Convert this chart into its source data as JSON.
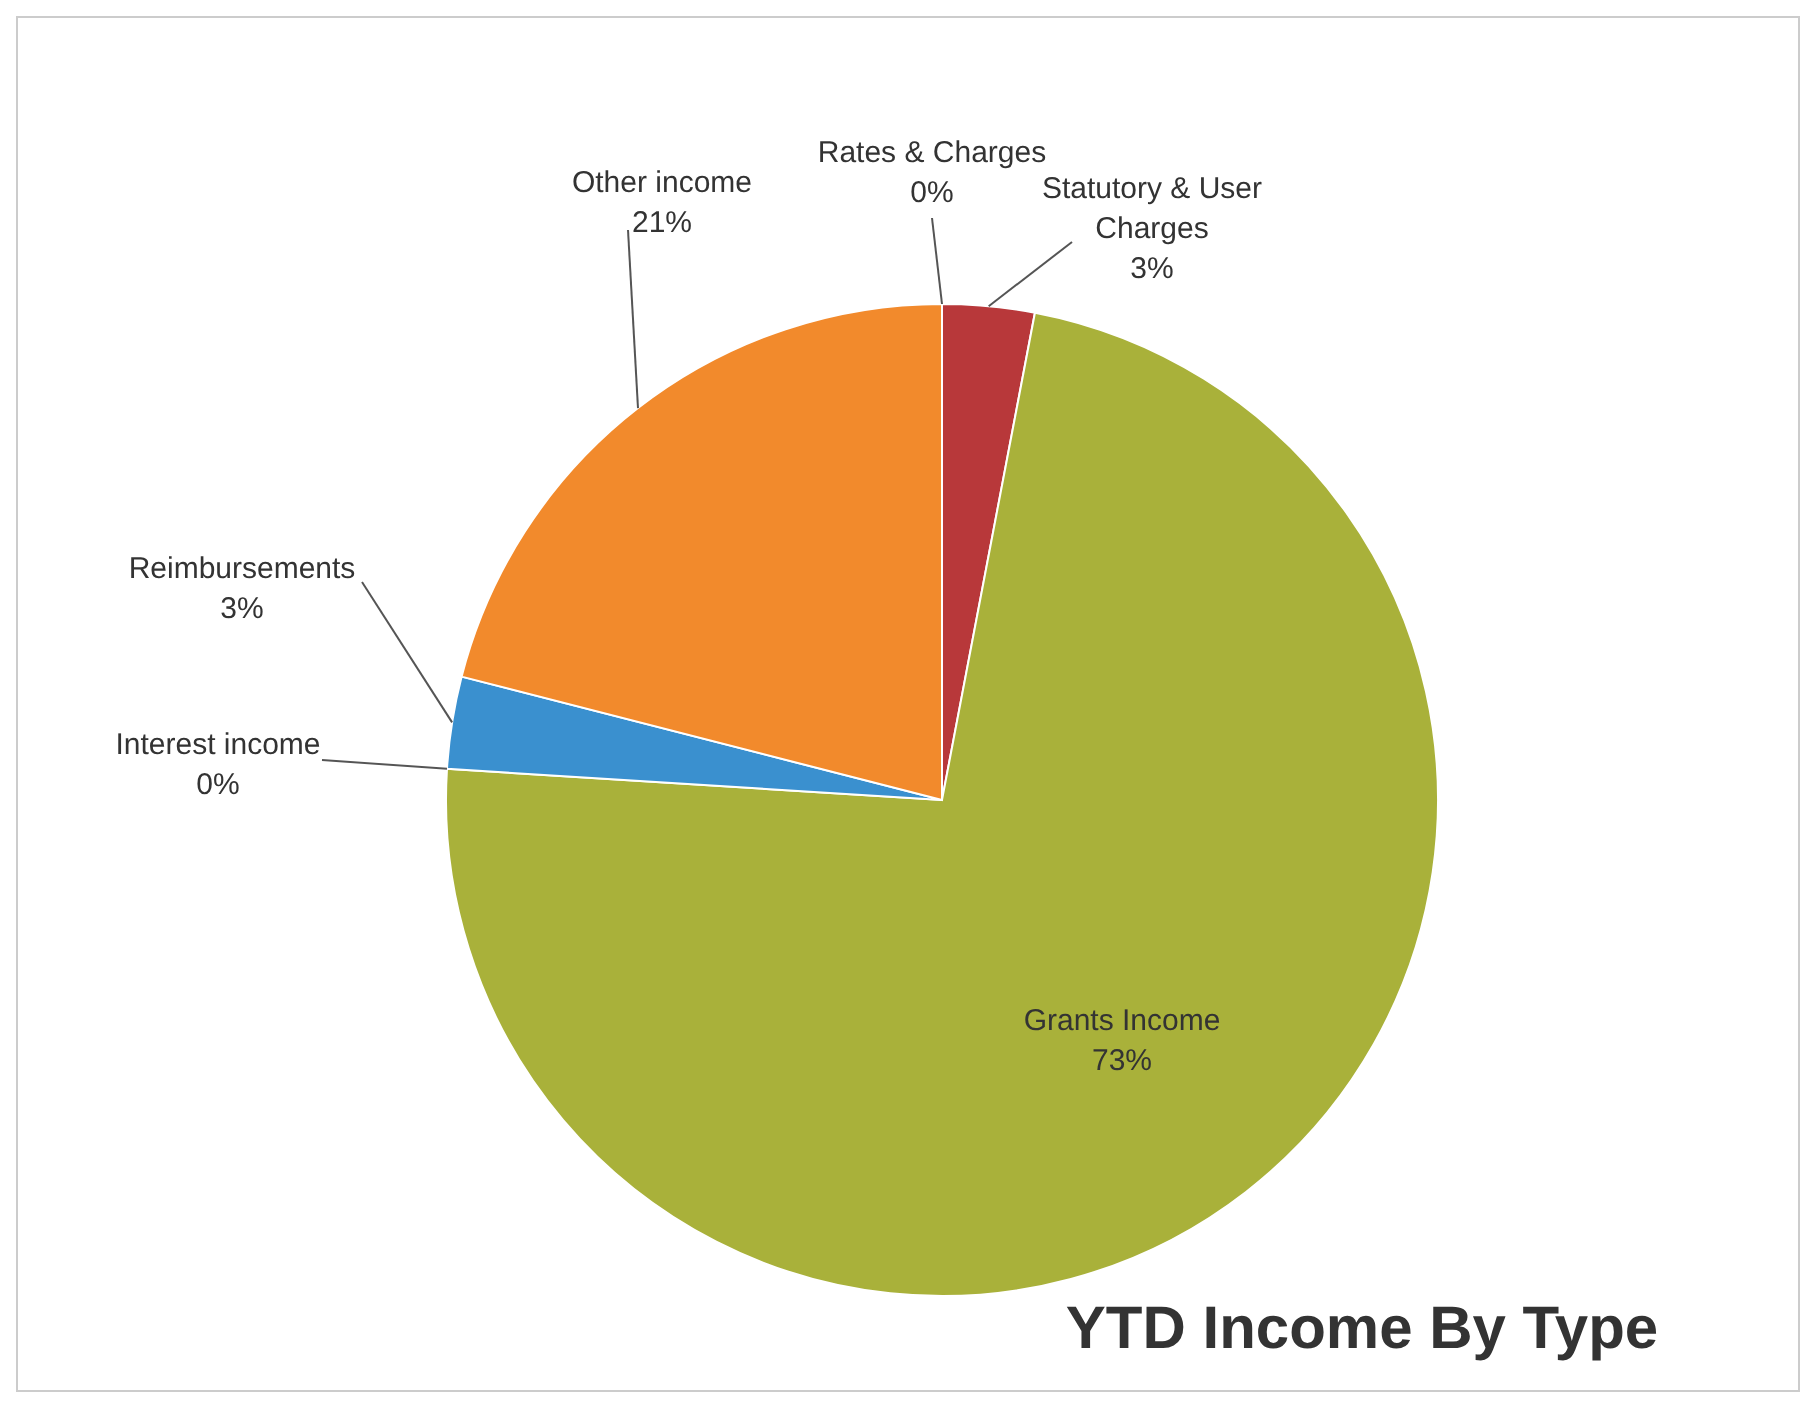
{
  "chart_data": {
    "type": "pie",
    "title": "YTD Income By Type",
    "categories": [
      "Rates & Charges",
      "Statutory & User Charges",
      "Grants Income",
      "Interest income",
      "Reimbursements",
      "Other income"
    ],
    "values": [
      0,
      3,
      73,
      0,
      3,
      21
    ],
    "value_labels": [
      "0%",
      "3%",
      "73%",
      "0%",
      "3%",
      "21%"
    ],
    "colors": [
      "#3c5f9a",
      "#b8383a",
      "#a9b13a",
      "#4a86c5",
      "#3a90cf",
      "#f28a2c"
    ]
  }
}
